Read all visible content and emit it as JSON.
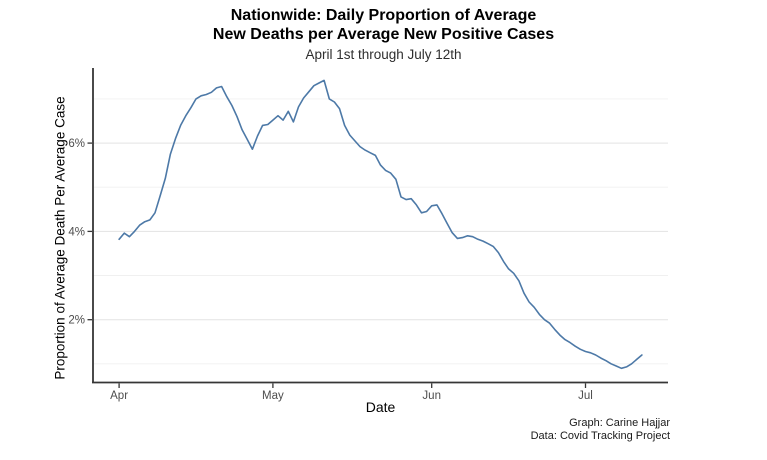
{
  "header": {
    "title_line1": "Nationwide: Daily Proportion of Average",
    "title_line2": "New Deaths per Average New Positive Cases",
    "subtitle": "April 1st through July 12th"
  },
  "caption": {
    "line1": "Graph: Carine Hajjar",
    "line2": "Data: Covid Tracking Project"
  },
  "colors": {
    "background": "#ffffff",
    "line": "#4d79a7",
    "axis": "#363636",
    "tick_text": "#4d4d4d",
    "grid_major": "#e3e3e3",
    "grid_minor": "#f0f0f0"
  },
  "chart_data": {
    "type": "line",
    "title": "Nationwide: Daily Proportion of Average New Deaths per Average New Positive Cases",
    "subtitle": "April 1st through July 12th",
    "xlabel": "Date",
    "ylabel": "Proportion of Average Death Per Average Case",
    "legend": "none",
    "grid": "horizontal-only",
    "x_unit": "days since Apr 1",
    "x_range_labels": [
      "Apr 1",
      "Jul 12"
    ],
    "xlim_days": [
      -5.1,
      107.1
    ],
    "ylim_percent": [
      0.6,
      7.7
    ],
    "x_ticks": [
      {
        "day": 0,
        "label": "Apr"
      },
      {
        "day": 30,
        "label": "May"
      },
      {
        "day": 61,
        "label": "Jun"
      },
      {
        "day": 91,
        "label": "Jul"
      }
    ],
    "y_ticks": [
      {
        "value": 2,
        "label": "2%"
      },
      {
        "value": 4,
        "label": "4%"
      },
      {
        "value": 6,
        "label": "6%"
      }
    ],
    "y_minor_gridlines": [
      1,
      3,
      5,
      7
    ],
    "line_color": "#4d79a7",
    "series": [
      {
        "name": "daily proportion of avg deaths per avg new positive cases (%)",
        "values": [
          3.82,
          3.96,
          3.88,
          4.0,
          4.14,
          4.22,
          4.26,
          4.42,
          4.8,
          5.2,
          5.75,
          6.1,
          6.4,
          6.62,
          6.8,
          7.0,
          7.07,
          7.1,
          7.15,
          7.25,
          7.28,
          7.05,
          6.85,
          6.6,
          6.3,
          6.08,
          5.86,
          6.16,
          6.4,
          6.42,
          6.52,
          6.62,
          6.52,
          6.72,
          6.48,
          6.82,
          7.02,
          7.16,
          7.3,
          7.36,
          7.42,
          7.0,
          6.93,
          6.78,
          6.4,
          6.18,
          6.05,
          5.92,
          5.84,
          5.78,
          5.72,
          5.5,
          5.38,
          5.32,
          5.18,
          4.78,
          4.72,
          4.74,
          4.6,
          4.42,
          4.45,
          4.58,
          4.6,
          4.4,
          4.18,
          3.97,
          3.84,
          3.86,
          3.9,
          3.88,
          3.82,
          3.78,
          3.72,
          3.66,
          3.52,
          3.32,
          3.15,
          3.05,
          2.88,
          2.6,
          2.4,
          2.28,
          2.12,
          2.0,
          1.92,
          1.78,
          1.65,
          1.55,
          1.48,
          1.4,
          1.33,
          1.28,
          1.25,
          1.2,
          1.13,
          1.07,
          1.0,
          0.95,
          0.9,
          0.93,
          1.0,
          1.1,
          1.2
        ]
      }
    ]
  }
}
